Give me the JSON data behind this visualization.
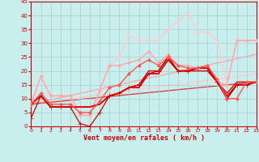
{
  "xlabel": "Vent moyen/en rafales ( km/h )",
  "xlim": [
    0,
    23
  ],
  "ylim": [
    0,
    45
  ],
  "yticks": [
    0,
    5,
    10,
    15,
    20,
    25,
    30,
    35,
    40,
    45
  ],
  "xticks": [
    0,
    1,
    2,
    3,
    4,
    5,
    6,
    7,
    8,
    9,
    10,
    11,
    12,
    13,
    14,
    15,
    16,
    17,
    18,
    19,
    20,
    21,
    22,
    23
  ],
  "background_color": "#c8eeee",
  "grid_color": "#aacccc",
  "lines": [
    {
      "x": [
        0,
        1,
        2,
        3,
        4,
        5,
        6,
        7,
        8,
        9,
        10,
        11,
        12,
        13,
        14,
        15,
        16,
        17,
        18,
        19,
        20,
        21,
        22,
        23
      ],
      "y": [
        3,
        11,
        7,
        7,
        7,
        1,
        0,
        5,
        11,
        12,
        14,
        15,
        19,
        20,
        25,
        20,
        20,
        21,
        21,
        16,
        10,
        15,
        15,
        16
      ],
      "color": "#cc0000",
      "lw": 0.9,
      "marker": "+",
      "ms": 4,
      "alpha": 1.0,
      "zorder": 5
    },
    {
      "x": [
        0,
        1,
        2,
        3,
        4,
        5,
        6,
        7,
        8,
        9,
        10,
        11,
        12,
        13,
        14,
        15,
        16,
        17,
        18,
        19,
        20,
        21,
        22,
        23
      ],
      "y": [
        8,
        11,
        7,
        7,
        7,
        7,
        7,
        8,
        11,
        12,
        14,
        14,
        19,
        19,
        24,
        20,
        20,
        20,
        20,
        16,
        10,
        15,
        15,
        16
      ],
      "color": "#cc0000",
      "lw": 1.0,
      "marker": null,
      "ms": 0,
      "alpha": 1.0,
      "zorder": 4
    },
    {
      "x": [
        0,
        1,
        2,
        3,
        4,
        5,
        6,
        7,
        8,
        9,
        10,
        11,
        12,
        13,
        14,
        15,
        16,
        17,
        18,
        19,
        20,
        21,
        22,
        23
      ],
      "y": [
        8,
        11,
        7,
        7,
        7,
        7,
        7,
        8,
        11,
        12,
        14,
        14,
        19,
        19,
        24,
        20,
        20,
        21,
        21,
        16,
        11,
        15,
        15,
        16
      ],
      "color": "#dd1111",
      "lw": 1.2,
      "marker": null,
      "ms": 0,
      "alpha": 1.0,
      "zorder": 4
    },
    {
      "x": [
        0,
        1,
        2,
        3,
        4,
        5,
        6,
        7,
        8,
        9,
        10,
        11,
        12,
        13,
        14,
        15,
        16,
        17,
        18,
        19,
        20,
        21,
        22,
        23
      ],
      "y": [
        8,
        11,
        7,
        7,
        7,
        7,
        7,
        8,
        11,
        12,
        14,
        15,
        20,
        20,
        25,
        20,
        20,
        21,
        21,
        16,
        12,
        16,
        16,
        16
      ],
      "color": "#ee0000",
      "lw": 1.0,
      "marker": null,
      "ms": 0,
      "alpha": 1.0,
      "zorder": 4
    },
    {
      "x": [
        0,
        1,
        2,
        3,
        4,
        5,
        6,
        7,
        8,
        9,
        10,
        11,
        12,
        13,
        14,
        15,
        16,
        17,
        18,
        19,
        20,
        21,
        22,
        23
      ],
      "y": [
        8,
        12,
        8,
        8,
        8,
        5,
        5,
        9,
        14,
        15,
        19,
        22,
        24,
        22,
        25,
        22,
        21,
        21,
        22,
        17,
        10,
        10,
        16,
        16
      ],
      "color": "#ff5555",
      "lw": 1.0,
      "marker": "D",
      "ms": 2,
      "alpha": 1.0,
      "zorder": 5
    },
    {
      "x": [
        0,
        1,
        2,
        3,
        4,
        5,
        6,
        7,
        8,
        9,
        10,
        11,
        12,
        13,
        14,
        15,
        16,
        17,
        18,
        19,
        20,
        21,
        22,
        23
      ],
      "y": [
        8,
        18,
        11,
        11,
        11,
        4,
        4,
        13,
        22,
        22,
        23,
        24,
        27,
        23,
        26,
        22,
        22,
        21,
        22,
        16,
        15,
        31,
        31,
        31
      ],
      "color": "#ffaaaa",
      "lw": 1.1,
      "marker": "D",
      "ms": 2,
      "alpha": 1.0,
      "zorder": 3
    },
    {
      "x": [
        0,
        1,
        2,
        3,
        4,
        5,
        6,
        7,
        8,
        9,
        10,
        11,
        12,
        13,
        14,
        15,
        16,
        17,
        18,
        19,
        20,
        21,
        22,
        23
      ],
      "y": [
        8,
        18,
        11,
        11,
        11,
        4,
        4,
        13,
        22,
        25,
        33,
        31,
        31,
        31,
        35,
        38,
        41,
        34,
        34,
        31,
        15,
        31,
        31,
        31
      ],
      "color": "#ffcccc",
      "lw": 1.1,
      "marker": "D",
      "ms": 2,
      "alpha": 1.0,
      "zorder": 2
    }
  ],
  "straight_lines": [
    {
      "x": [
        0,
        23
      ],
      "y": [
        8,
        19
      ],
      "color": "#ffcccc",
      "lw": 1.0,
      "alpha": 1.0,
      "zorder": 1
    },
    {
      "x": [
        0,
        23
      ],
      "y": [
        8,
        26
      ],
      "color": "#ffaaaa",
      "lw": 1.0,
      "alpha": 1.0,
      "zorder": 1
    },
    {
      "x": [
        0,
        23
      ],
      "y": [
        8,
        16
      ],
      "color": "#dd3333",
      "lw": 0.9,
      "alpha": 1.0,
      "zorder": 1
    }
  ]
}
